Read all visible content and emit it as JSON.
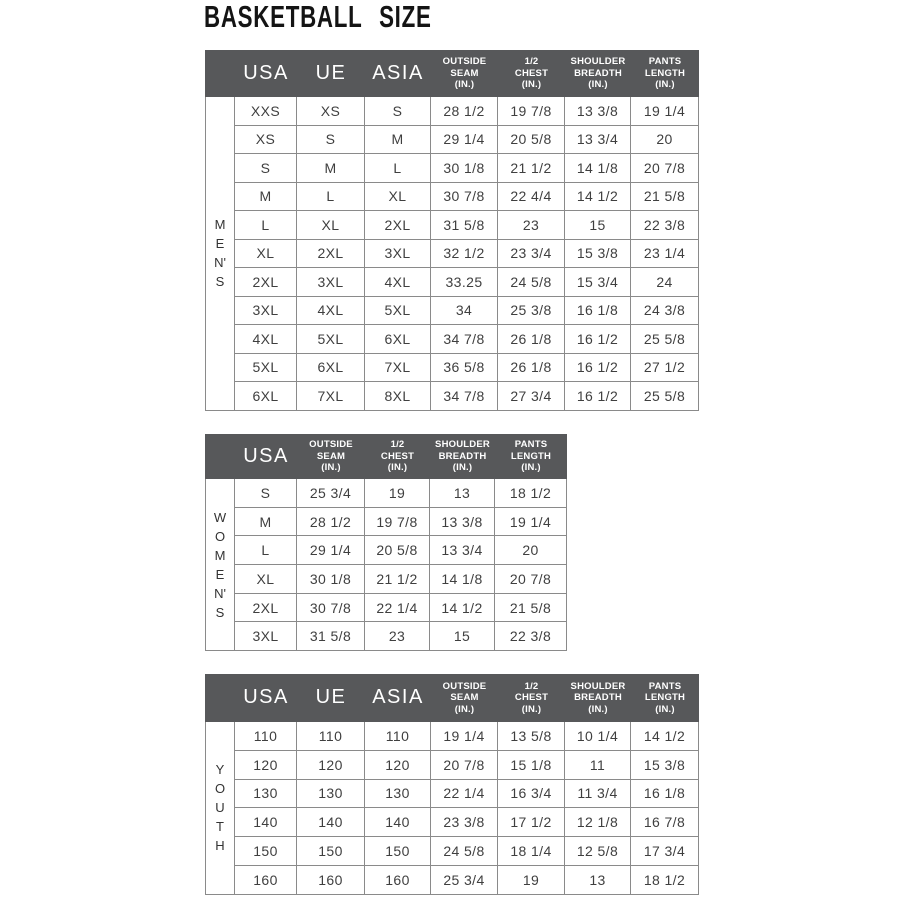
{
  "title": "BASKETBALL  SIZE",
  "colors": {
    "header_bg": "#57585a",
    "header_text": "#ffffff",
    "grid_line": "#8a8a8a",
    "cell_text": "#3f3f3f",
    "title_text": "#141414"
  },
  "tables": [
    {
      "group": "MEN'S",
      "group_lines": [
        "M",
        "E",
        "N'",
        "S"
      ],
      "columns": [
        [
          "USA"
        ],
        [
          "UE"
        ],
        [
          "ASIA"
        ],
        [
          "OUTSIDE",
          "SEAM",
          "(IN.)"
        ],
        [
          "1/2",
          "CHEST",
          "(IN.)"
        ],
        [
          "SHOULDER",
          "BREADTH",
          "(IN.)"
        ],
        [
          "PANTS",
          "LENGTH",
          "(IN.)"
        ]
      ],
      "rows": [
        [
          "XXS",
          "XS",
          "S",
          "28 1/2",
          "19 7/8",
          "13 3/8",
          "19 1/4"
        ],
        [
          "XS",
          "S",
          "M",
          "29 1/4",
          "20 5/8",
          "13 3/4",
          "20"
        ],
        [
          "S",
          "M",
          "L",
          "30 1/8",
          "21 1/2",
          "14 1/8",
          "20 7/8"
        ],
        [
          "M",
          "L",
          "XL",
          "30 7/8",
          "22 4/4",
          "14 1/2",
          "21 5/8"
        ],
        [
          "L",
          "XL",
          "2XL",
          "31 5/8",
          "23",
          "15",
          "22 3/8"
        ],
        [
          "XL",
          "2XL",
          "3XL",
          "32 1/2",
          "23 3/4",
          "15 3/8",
          "23 1/4"
        ],
        [
          "2XL",
          "3XL",
          "4XL",
          "33.25",
          "24 5/8",
          "15 3/4",
          "24"
        ],
        [
          "3XL",
          "4XL",
          "5XL",
          "34",
          "25 3/8",
          "16 1/8",
          "24 3/8"
        ],
        [
          "4XL",
          "5XL",
          "6XL",
          "34 7/8",
          "26 1/8",
          "16 1/2",
          "25 5/8"
        ],
        [
          "5XL",
          "6XL",
          "7XL",
          "36 5/8",
          "26 1/8",
          "16 1/2",
          "27 1/2"
        ],
        [
          "6XL",
          "7XL",
          "8XL",
          "34 7/8",
          "27 3/4",
          "16 1/2",
          "25 5/8"
        ]
      ]
    },
    {
      "group": "WOMEN'S",
      "group_lines": [
        "W",
        "O",
        "M",
        "E",
        "N'",
        "S"
      ],
      "columns": [
        [
          "USA"
        ],
        [
          "OUTSIDE",
          "SEAM",
          "(IN.)"
        ],
        [
          "1/2",
          "CHEST",
          "(IN.)"
        ],
        [
          "SHOULDER",
          "BREADTH",
          "(IN.)"
        ],
        [
          "PANTS",
          "LENGTH",
          "(IN.)"
        ]
      ],
      "rows": [
        [
          "S",
          "25 3/4",
          "19",
          "13",
          "18 1/2"
        ],
        [
          "M",
          "28 1/2",
          "19 7/8",
          "13 3/8",
          "19 1/4"
        ],
        [
          "L",
          "29 1/4",
          "20 5/8",
          "13 3/4",
          "20"
        ],
        [
          "XL",
          "30 1/8",
          "21 1/2",
          "14 1/8",
          "20 7/8"
        ],
        [
          "2XL",
          "30 7/8",
          "22 1/4",
          "14 1/2",
          "21 5/8"
        ],
        [
          "3XL",
          "31 5/8",
          "23",
          "15",
          "22 3/8"
        ]
      ]
    },
    {
      "group": "YOUTH",
      "group_lines": [
        "Y",
        "O",
        "U",
        "T",
        "H"
      ],
      "columns": [
        [
          "USA"
        ],
        [
          "UE"
        ],
        [
          "ASIA"
        ],
        [
          "OUTSIDE",
          "SEAM",
          "(IN.)"
        ],
        [
          "1/2",
          "CHEST",
          "(IN.)"
        ],
        [
          "SHOULDER",
          "BREADTH",
          "(IN.)"
        ],
        [
          "PANTS",
          "LENGTH",
          "(IN.)"
        ]
      ],
      "rows": [
        [
          "110",
          "110",
          "110",
          "19 1/4",
          "13 5/8",
          "10 1/4",
          "14 1/2"
        ],
        [
          "120",
          "120",
          "120",
          "20 7/8",
          "15 1/8",
          "11",
          "15 3/8"
        ],
        [
          "130",
          "130",
          "130",
          "22 1/4",
          "16 3/4",
          "11 3/4",
          "16 1/8"
        ],
        [
          "140",
          "140",
          "140",
          "23 3/8",
          "17 1/2",
          "12 1/8",
          "16 7/8"
        ],
        [
          "150",
          "150",
          "150",
          "24 5/8",
          "18 1/4",
          "12 5/8",
          "17 3/4"
        ],
        [
          "160",
          "160",
          "160",
          "25 3/4",
          "19",
          "13",
          "18 1/2"
        ]
      ]
    }
  ]
}
